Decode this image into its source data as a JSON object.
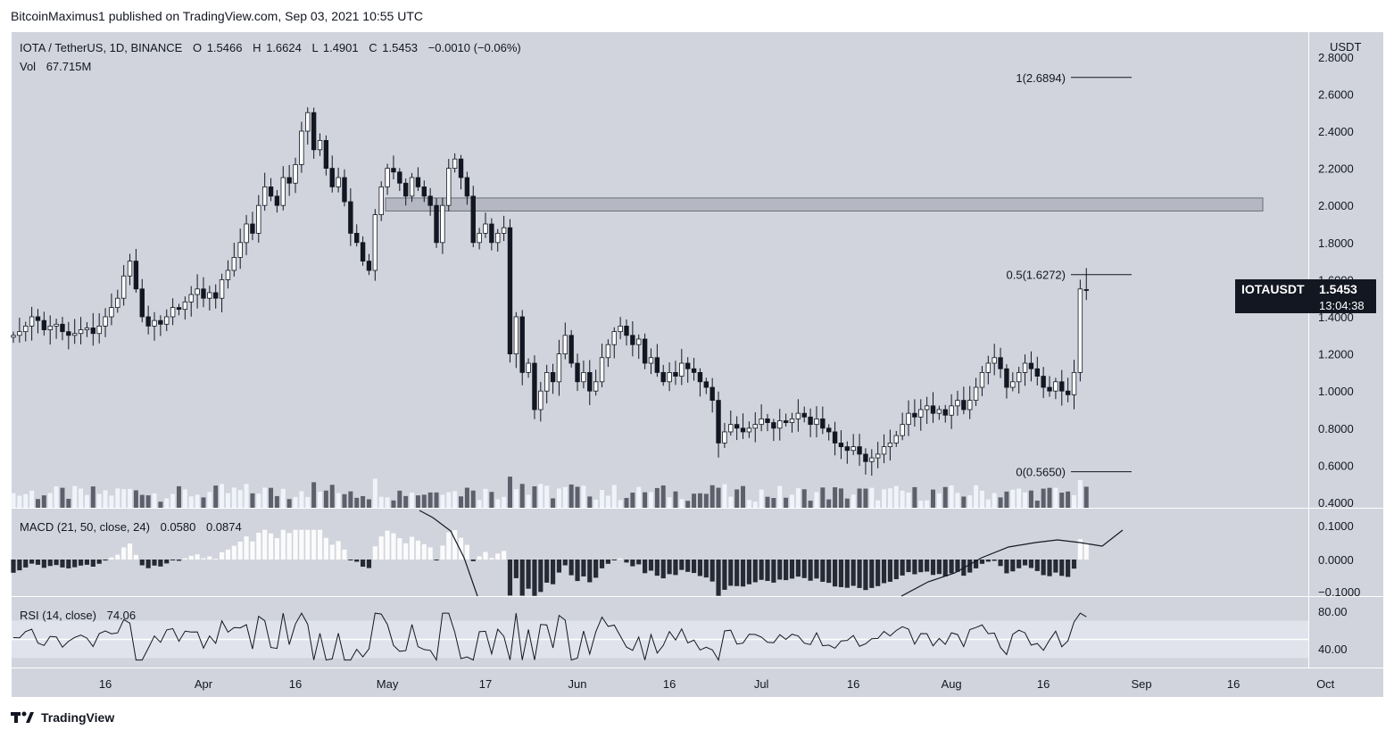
{
  "header": {
    "published_line": "BitcoinMaximus1 published on TradingView.com, Sep 03, 2021 10:55 UTC"
  },
  "footer": {
    "brand": "TradingView"
  },
  "legend": {
    "symbol": "IOTA / TetherUS, 1D, BINANCE",
    "o_label": "O",
    "o_value": "1.5466",
    "h_label": "H",
    "h_value": "1.6624",
    "l_label": "L",
    "l_value": "1.4901",
    "c_label": "C",
    "c_value": "1.5453",
    "change": "−0.0010 (−0.06%)",
    "vol_label": "Vol",
    "vol_value": "67.715M"
  },
  "price_scale": {
    "currency": "USDT",
    "ticks": [
      "2.8000",
      "2.6000",
      "2.4000",
      "2.2000",
      "2.0000",
      "1.8000",
      "1.6000",
      "1.4000",
      "1.2000",
      "1.0000",
      "0.8000",
      "0.6000",
      "0.4000"
    ]
  },
  "symbol_tag": {
    "name": "IOTAUSDT",
    "price": "1.5453",
    "countdown": "13:04:38",
    "color": "#131722"
  },
  "fib_levels": [
    {
      "label": "1(2.6894)",
      "value": 2.6894
    },
    {
      "label": "0.5(1.6272)",
      "value": 1.6272
    },
    {
      "label": "0(0.5650)",
      "value": 0.565
    }
  ],
  "resistance_zone": {
    "low": 1.97,
    "high": 2.04,
    "color": "#b5b8c2"
  },
  "macd": {
    "label": "MACD (21, 50, close, 24)",
    "value1": "0.0580",
    "value2": "0.0874",
    "ticks": [
      "0.1000",
      "0.0000",
      "−0.1000"
    ]
  },
  "rsi": {
    "label": "RSI (14, close)",
    "value": "74.06",
    "ticks": [
      "80.00",
      "40.00"
    ]
  },
  "time_axis": {
    "labels": [
      {
        "text": "16",
        "day": 15
      },
      {
        "text": "Apr",
        "day": 31
      },
      {
        "text": "16",
        "day": 46
      },
      {
        "text": "May",
        "day": 61
      },
      {
        "text": "17",
        "day": 77
      },
      {
        "text": "Jun",
        "day": 92
      },
      {
        "text": "16",
        "day": 107
      },
      {
        "text": "Jul",
        "day": 122
      },
      {
        "text": "16",
        "day": 137
      },
      {
        "text": "Aug",
        "day": 153
      },
      {
        "text": "16",
        "day": 168
      },
      {
        "text": "Sep",
        "day": 184
      },
      {
        "text": "16",
        "day": 199
      },
      {
        "text": "Oct",
        "day": 214
      }
    ]
  },
  "colors": {
    "chart_bg": "#d1d4dc",
    "up_candle": "#ffffff",
    "down_candle": "#131722",
    "volume_up": "#f0f3fa",
    "volume_down": "#5d606b",
    "macd_line": "#131722",
    "rsi_band": "#e0e3eb"
  },
  "chart_data": {
    "type": "candlestick",
    "title": "IOTA / TetherUS, 1D, BINANCE",
    "x_axis": "date (daily)",
    "y_axis": "USDT",
    "ylim": [
      0.4,
      2.8
    ],
    "closes": [
      1.3,
      1.32,
      1.35,
      1.4,
      1.38,
      1.33,
      1.35,
      1.36,
      1.32,
      1.3,
      1.31,
      1.33,
      1.34,
      1.31,
      1.35,
      1.4,
      1.45,
      1.5,
      1.62,
      1.7,
      1.55,
      1.4,
      1.35,
      1.38,
      1.36,
      1.4,
      1.45,
      1.44,
      1.48,
      1.52,
      1.55,
      1.5,
      1.53,
      1.5,
      1.6,
      1.65,
      1.72,
      1.8,
      1.9,
      1.85,
      2.0,
      2.1,
      2.05,
      2.0,
      2.15,
      2.12,
      2.22,
      2.4,
      2.5,
      2.3,
      2.35,
      2.2,
      2.1,
      2.15,
      2.02,
      1.85,
      1.8,
      1.7,
      1.65,
      1.95,
      2.1,
      2.2,
      2.18,
      2.12,
      2.05,
      2.15,
      2.1,
      2.05,
      2.0,
      1.8,
      2.0,
      2.2,
      2.25,
      2.15,
      2.05,
      1.8,
      1.85,
      1.9,
      1.8,
      1.85,
      1.88,
      1.2,
      1.4,
      1.1,
      1.15,
      0.9,
      1.0,
      1.1,
      1.05,
      1.2,
      1.3,
      1.15,
      1.05,
      1.1,
      1.0,
      1.05,
      1.18,
      1.25,
      1.32,
      1.35,
      1.3,
      1.25,
      1.28,
      1.15,
      1.18,
      1.1,
      1.05,
      1.1,
      1.08,
      1.15,
      1.12,
      1.1,
      1.05,
      1.02,
      0.95,
      0.72,
      0.78,
      0.82,
      0.8,
      0.78,
      0.8,
      0.82,
      0.85,
      0.83,
      0.8,
      0.84,
      0.83,
      0.85,
      0.88,
      0.86,
      0.82,
      0.85,
      0.8,
      0.78,
      0.72,
      0.7,
      0.68,
      0.7,
      0.66,
      0.62,
      0.64,
      0.66,
      0.7,
      0.72,
      0.76,
      0.82,
      0.88,
      0.86,
      0.9,
      0.92,
      0.88,
      0.9,
      0.87,
      0.92,
      0.95,
      0.9,
      0.95,
      1.02,
      1.1,
      1.15,
      1.18,
      1.12,
      1.02,
      1.05,
      1.1,
      1.15,
      1.12,
      1.08,
      1.02,
      1.0,
      1.05,
      1.0,
      0.98,
      1.1,
      1.55,
      1.5453
    ]
  }
}
